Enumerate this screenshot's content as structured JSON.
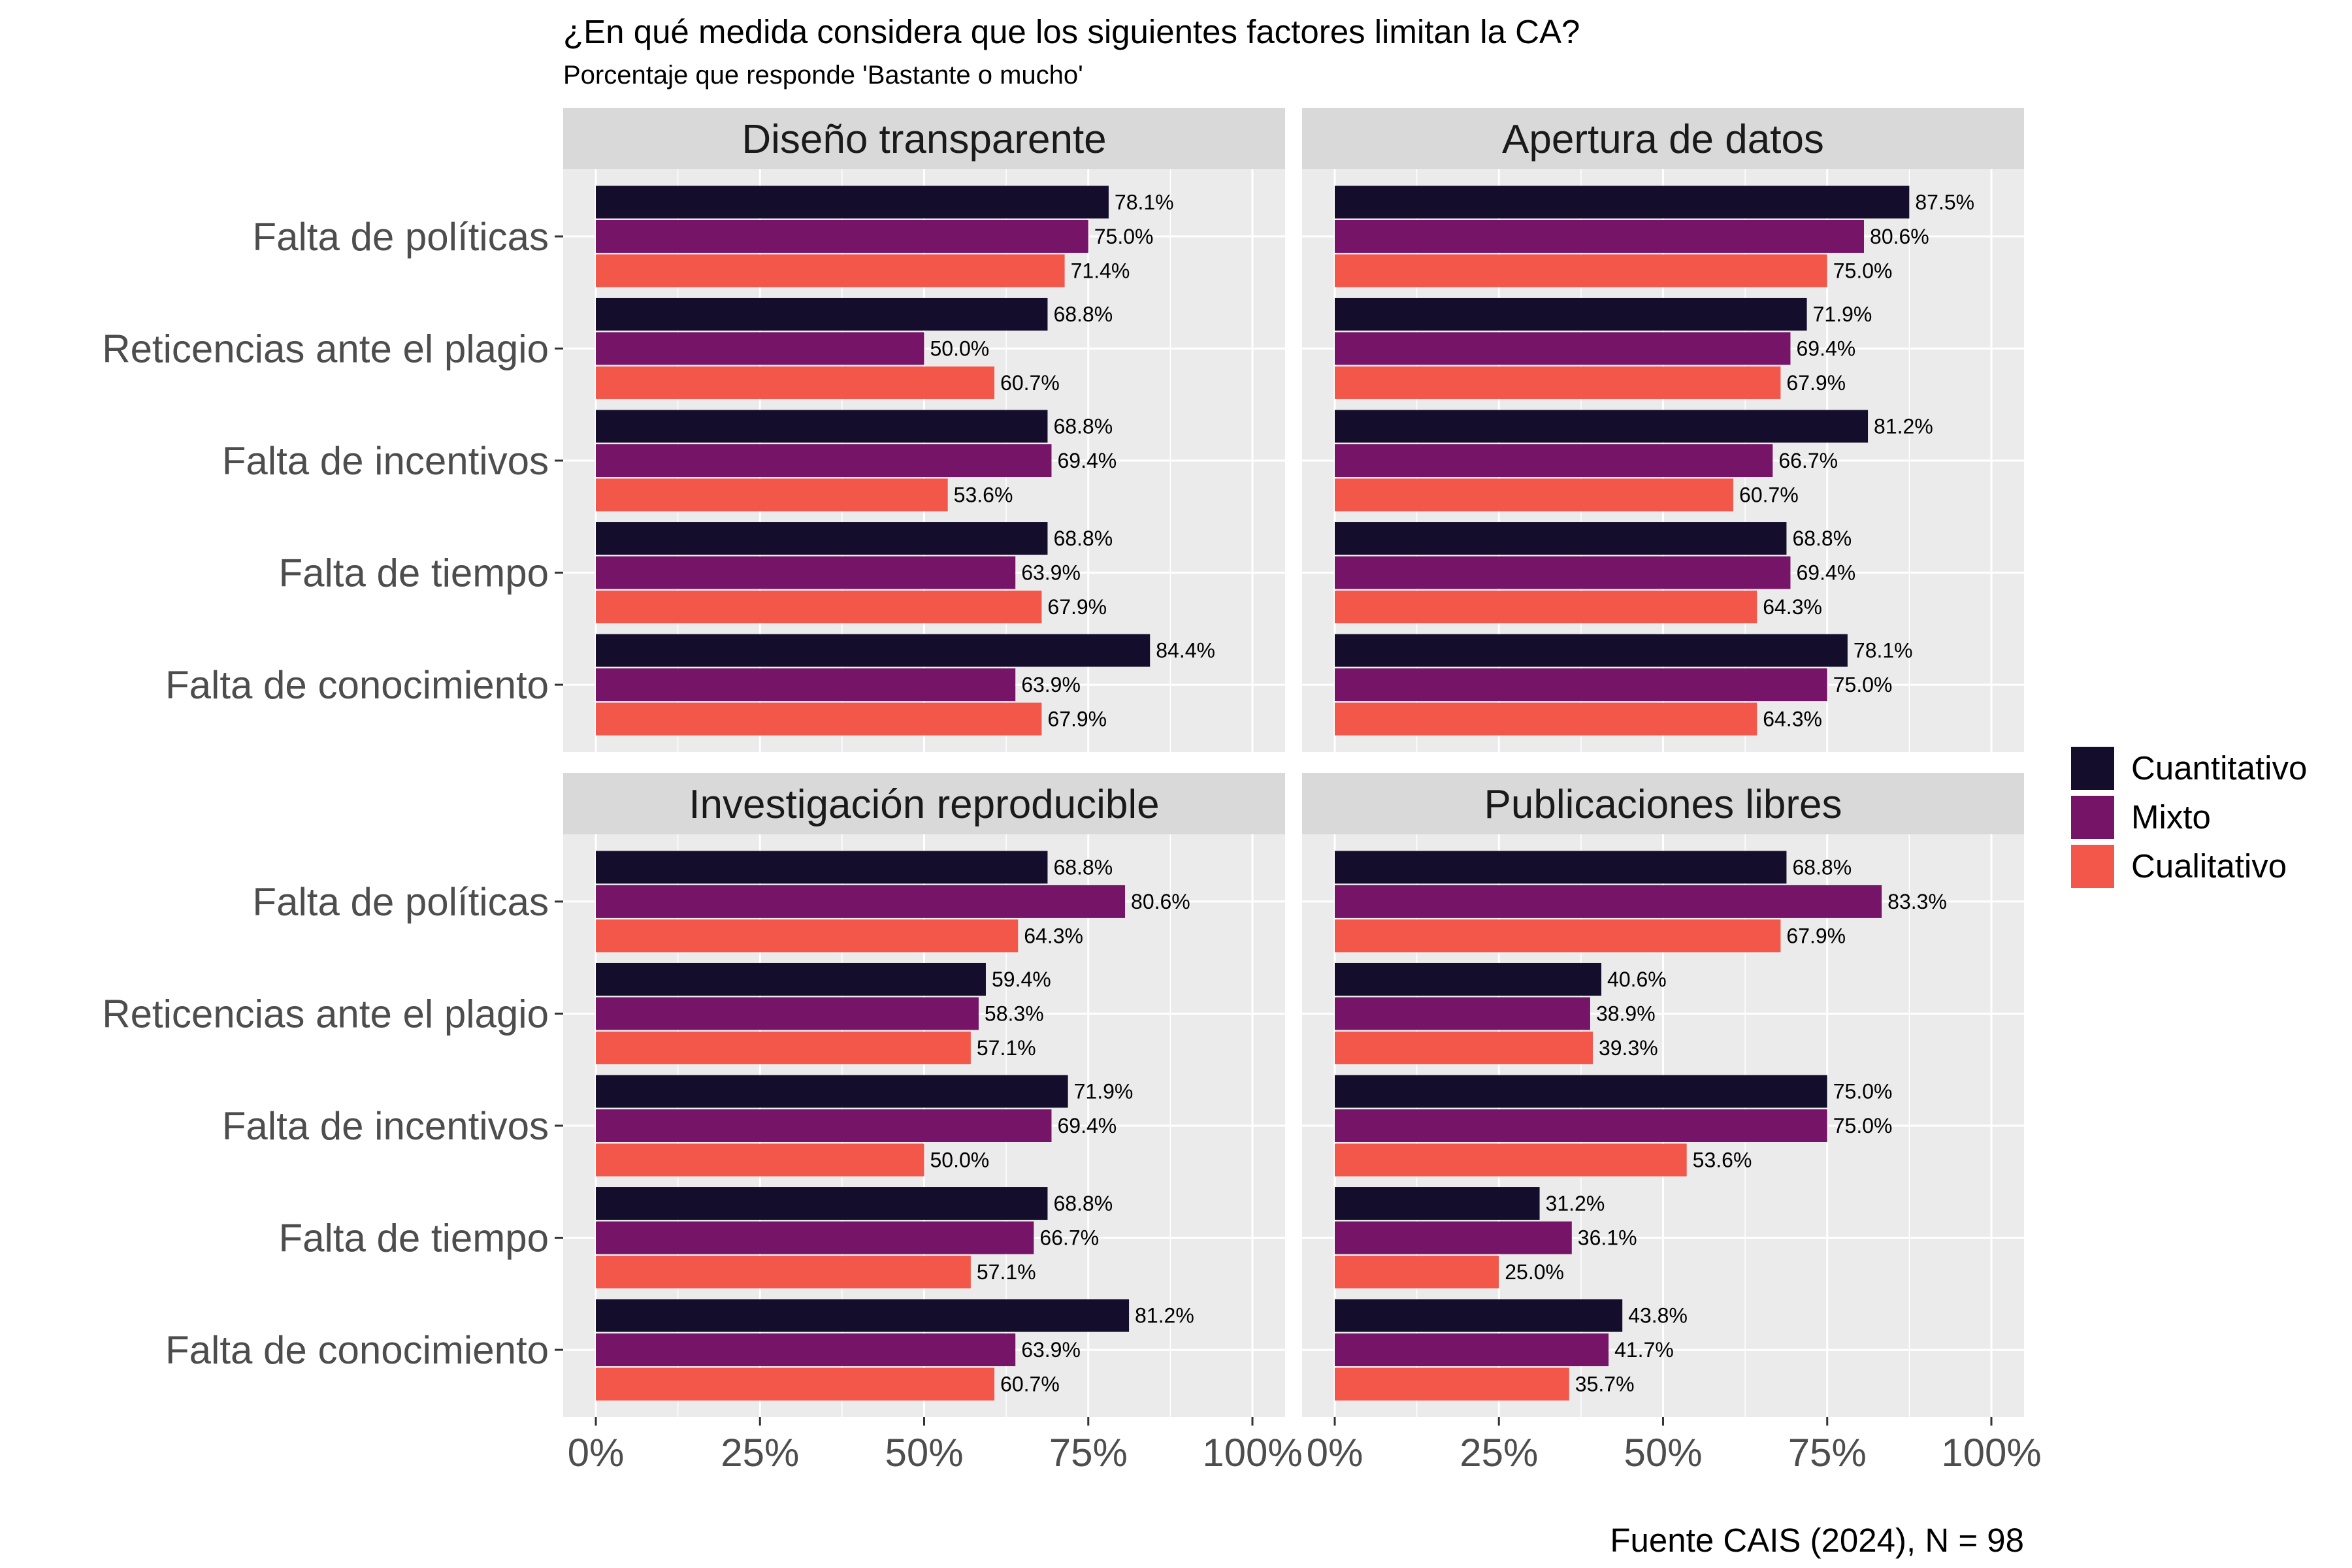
{
  "chart_data": {
    "type": "bar",
    "orientation": "horizontal",
    "title": "¿En qué medida considera que los siguientes factores limitan la CA?",
    "subtitle": "Porcentaje que responde 'Bastante o mucho'",
    "caption": "Fuente CAIS (2024), N = 98",
    "categories": [
      "Falta de políticas",
      "Reticencias ante el plagio",
      "Falta de incentivos",
      "Falta de tiempo ",
      "Falta de conocimiento"
    ],
    "x_ticks": [
      "0%",
      "25%",
      "50%",
      "75%",
      "100%"
    ],
    "xlim": [
      0,
      100
    ],
    "grid": true,
    "legend": {
      "position": "right",
      "entries": [
        {
          "name": "Cuantitativo",
          "color": "#140E2C"
        },
        {
          "name": "Mixto",
          "color": "#761568"
        },
        {
          "name": "Cualitativo",
          "color": "#F3574A"
        }
      ]
    },
    "panels": [
      {
        "title": "Diseño transparente",
        "series": [
          {
            "name": "Cuantitativo",
            "values": [
              78.1,
              68.8,
              68.8,
              68.8,
              84.4
            ]
          },
          {
            "name": "Mixto",
            "values": [
              75.0,
              50.0,
              69.4,
              63.9,
              63.9
            ]
          },
          {
            "name": "Cualitativo",
            "values": [
              71.4,
              60.7,
              53.6,
              67.9,
              67.9
            ]
          }
        ]
      },
      {
        "title": "Apertura de datos",
        "series": [
          {
            "name": "Cuantitativo",
            "values": [
              87.5,
              71.9,
              81.2,
              68.8,
              78.1
            ]
          },
          {
            "name": "Mixto",
            "values": [
              80.6,
              69.4,
              66.7,
              69.4,
              75.0
            ]
          },
          {
            "name": "Cualitativo",
            "values": [
              75.0,
              67.9,
              60.7,
              64.3,
              64.3
            ]
          }
        ]
      },
      {
        "title": "Investigación reproducible",
        "series": [
          {
            "name": "Cuantitativo",
            "values": [
              68.8,
              59.4,
              71.9,
              68.8,
              81.2
            ]
          },
          {
            "name": "Mixto",
            "values": [
              80.6,
              58.3,
              69.4,
              66.7,
              63.9
            ]
          },
          {
            "name": "Cualitativo",
            "values": [
              64.3,
              57.1,
              50.0,
              57.1,
              60.7
            ]
          }
        ]
      },
      {
        "title": "Publicaciones libres",
        "series": [
          {
            "name": "Cuantitativo",
            "values": [
              68.8,
              40.6,
              75.0,
              31.2,
              43.8
            ]
          },
          {
            "name": "Mixto",
            "values": [
              83.3,
              38.9,
              75.0,
              36.1,
              41.7
            ]
          },
          {
            "name": "Cualitativo",
            "values": [
              67.9,
              39.3,
              53.6,
              25.0,
              35.7
            ]
          }
        ]
      }
    ]
  }
}
